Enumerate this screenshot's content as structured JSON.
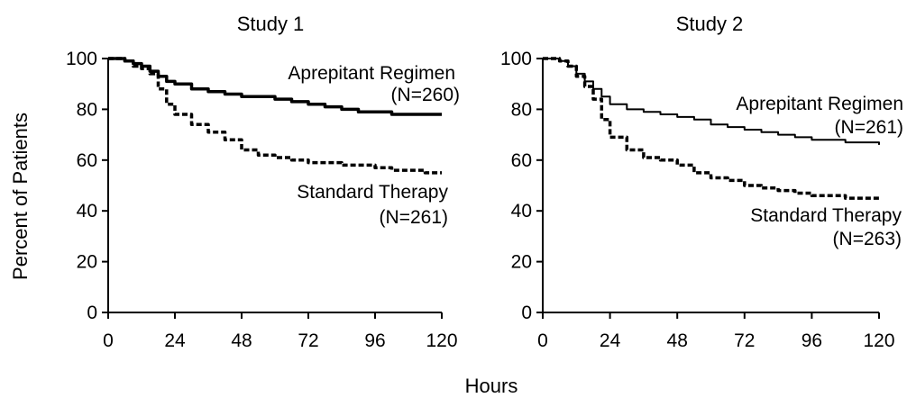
{
  "shared": {
    "xlabel": "Hours",
    "ylabel": "Percent of Patients"
  },
  "chart_data": [
    {
      "type": "line",
      "title": "Study 1",
      "xlim": [
        0,
        120
      ],
      "ylim": [
        0,
        100
      ],
      "x_ticks": [
        0,
        24,
        48,
        72,
        96,
        120
      ],
      "y_ticks": [
        0,
        20,
        40,
        60,
        80,
        100
      ],
      "grid": false,
      "series": [
        {
          "name": "Aprepitant Regimen",
          "n_label": "(N=260)",
          "style": "solid",
          "x": [
            0,
            3,
            6,
            9,
            12,
            15,
            18,
            21,
            24,
            30,
            36,
            42,
            48,
            54,
            60,
            66,
            72,
            78,
            84,
            90,
            96,
            102,
            108,
            114,
            120
          ],
          "y": [
            100,
            100,
            99,
            98,
            97,
            95,
            93,
            91,
            90,
            88,
            87,
            86,
            85,
            85,
            84,
            83,
            82,
            81,
            80,
            79,
            79,
            78,
            78,
            78,
            78
          ]
        },
        {
          "name": "Standard Therapy",
          "n_label": "(N=261)",
          "style": "dashed",
          "x": [
            0,
            3,
            6,
            9,
            12,
            15,
            18,
            21,
            24,
            30,
            36,
            42,
            48,
            54,
            60,
            66,
            72,
            78,
            84,
            90,
            96,
            102,
            108,
            114,
            120
          ],
          "y": [
            100,
            100,
            99,
            97,
            96,
            94,
            88,
            82,
            78,
            74,
            71,
            68,
            64,
            62,
            61,
            60,
            59,
            59,
            58,
            58,
            57,
            56,
            56,
            55,
            55
          ]
        }
      ]
    },
    {
      "type": "line",
      "title": "Study 2",
      "xlim": [
        0,
        120
      ],
      "ylim": [
        0,
        100
      ],
      "x_ticks": [
        0,
        24,
        48,
        72,
        96,
        120
      ],
      "y_ticks": [
        0,
        20,
        40,
        60,
        80,
        100
      ],
      "grid": false,
      "series": [
        {
          "name": "Aprepitant Regimen",
          "n_label": "(N=261)",
          "style": "solid",
          "x": [
            0,
            3,
            6,
            9,
            12,
            15,
            18,
            21,
            24,
            30,
            36,
            42,
            48,
            54,
            60,
            66,
            72,
            78,
            84,
            90,
            96,
            102,
            108,
            114,
            120
          ],
          "y": [
            100,
            100,
            99,
            97,
            94,
            91,
            88,
            85,
            82,
            80,
            79,
            78,
            77,
            76,
            74,
            73,
            72,
            71,
            70,
            69,
            68,
            68,
            67,
            67,
            66
          ]
        },
        {
          "name": "Standard Therapy",
          "n_label": "(N=263)",
          "style": "dashed",
          "x": [
            0,
            3,
            6,
            9,
            12,
            15,
            18,
            21,
            24,
            30,
            36,
            42,
            48,
            54,
            60,
            66,
            72,
            78,
            84,
            90,
            96,
            102,
            108,
            114,
            120
          ],
          "y": [
            100,
            100,
            99,
            97,
            93,
            89,
            84,
            76,
            69,
            64,
            61,
            60,
            58,
            55,
            53,
            52,
            50,
            49,
            48,
            47,
            46,
            46,
            45,
            45,
            45
          ]
        }
      ]
    }
  ]
}
